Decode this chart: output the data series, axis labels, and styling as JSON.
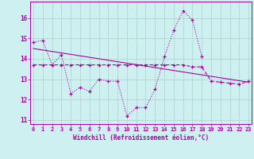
{
  "xlabel": "Windchill (Refroidissement éolien,°C)",
  "background_color": "#cff0f0",
  "grid_color": "#b0d8d0",
  "line_color": "#aa00aa",
  "x_values": [
    0,
    1,
    2,
    3,
    4,
    5,
    6,
    7,
    8,
    9,
    10,
    11,
    12,
    13,
    14,
    15,
    16,
    17,
    18,
    19,
    20,
    21,
    22,
    23
  ],
  "series1": [
    14.8,
    14.9,
    13.7,
    14.2,
    12.3,
    12.6,
    12.4,
    13.0,
    12.9,
    12.9,
    11.2,
    11.6,
    11.6,
    12.5,
    14.1,
    15.4,
    16.35,
    15.9,
    14.1,
    null,
    null,
    null,
    null,
    null
  ],
  "series2": [
    13.7,
    13.7,
    13.7,
    13.7,
    13.7,
    13.7,
    13.7,
    13.7,
    13.7,
    13.7,
    13.7,
    13.7,
    13.7,
    13.7,
    13.7,
    13.7,
    13.7,
    13.6,
    13.6,
    12.9,
    12.85,
    12.8,
    12.75,
    12.9
  ],
  "series3_x": [
    0,
    23
  ],
  "series3_y": [
    14.5,
    12.85
  ],
  "ylim": [
    10.8,
    16.8
  ],
  "xlim": [
    -0.3,
    23.3
  ],
  "yticks": [
    11,
    12,
    13,
    14,
    15,
    16
  ],
  "xticks": [
    0,
    1,
    2,
    3,
    4,
    5,
    6,
    7,
    8,
    9,
    10,
    11,
    12,
    13,
    14,
    15,
    16,
    17,
    18,
    19,
    20,
    21,
    22,
    23
  ]
}
